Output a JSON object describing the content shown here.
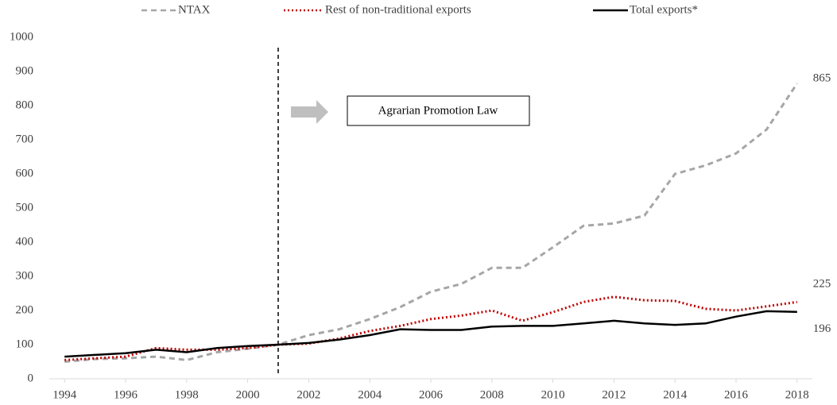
{
  "chart_data": {
    "type": "line",
    "x": [
      1994,
      1995,
      1996,
      1997,
      1998,
      1999,
      2000,
      2001,
      2002,
      2003,
      2004,
      2005,
      2006,
      2007,
      2008,
      2009,
      2010,
      2011,
      2012,
      2013,
      2014,
      2015,
      2016,
      2017,
      2018
    ],
    "series": [
      {
        "name": "NTAX",
        "color": "#a6a6a6",
        "dash": "dashed",
        "values": [
          50,
          58,
          60,
          65,
          55,
          78,
          88,
          100,
          128,
          145,
          175,
          210,
          255,
          278,
          325,
          325,
          385,
          448,
          455,
          478,
          600,
          625,
          660,
          730,
          865
        ]
      },
      {
        "name": "Rest of non-traditional exports",
        "color": "#c00000",
        "dash": "dotted",
        "values": [
          55,
          60,
          65,
          90,
          85,
          85,
          90,
          100,
          103,
          118,
          140,
          155,
          175,
          185,
          200,
          170,
          195,
          225,
          240,
          230,
          228,
          205,
          200,
          212,
          225
        ]
      },
      {
        "name": "Total exports*",
        "color": "#000000",
        "dash": "solid",
        "values": [
          65,
          70,
          75,
          85,
          78,
          90,
          96,
          100,
          105,
          115,
          128,
          145,
          143,
          143,
          153,
          155,
          155,
          162,
          170,
          162,
          158,
          162,
          182,
          198,
          196
        ]
      }
    ],
    "xlim": [
      1993.5,
      2018.5
    ],
    "xticks": [
      1994,
      1996,
      1998,
      2000,
      2002,
      2004,
      2006,
      2008,
      2010,
      2012,
      2014,
      2016,
      2018
    ],
    "ylim": [
      0,
      1000
    ],
    "yticks": [
      0,
      100,
      200,
      300,
      400,
      500,
      600,
      700,
      800,
      900,
      1000
    ],
    "grid": false,
    "legend": "top",
    "vline_x": 2001,
    "annotation": "Agrarian Promotion Law"
  }
}
